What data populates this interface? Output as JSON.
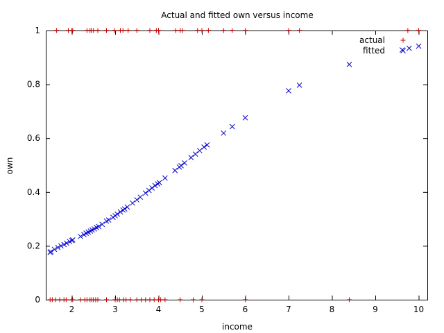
{
  "chart_data": {
    "type": "scatter",
    "title": "Actual and fitted own versus income",
    "xlabel": "income",
    "ylabel": "own",
    "xlim": [
      1.4,
      10.2
    ],
    "ylim": [
      0,
      1
    ],
    "xticks": [
      2,
      3,
      4,
      5,
      6,
      7,
      8,
      9,
      10
    ],
    "yticks": [
      0,
      0.2,
      0.4,
      0.6,
      0.8,
      1
    ],
    "grid": false,
    "legend_position": "top-right",
    "series": [
      {
        "name": "actual",
        "marker": "plus",
        "color": "#cc0000",
        "points": [
          [
            1.5,
            0
          ],
          [
            1.55,
            0
          ],
          [
            1.63,
            0
          ],
          [
            1.72,
            0
          ],
          [
            1.82,
            0
          ],
          [
            1.87,
            0
          ],
          [
            2.0,
            0
          ],
          [
            2.02,
            0
          ],
          [
            2.2,
            0
          ],
          [
            2.3,
            0
          ],
          [
            2.35,
            0
          ],
          [
            2.42,
            0
          ],
          [
            2.46,
            0
          ],
          [
            2.5,
            0
          ],
          [
            2.55,
            0
          ],
          [
            2.6,
            0
          ],
          [
            2.8,
            0
          ],
          [
            3.0,
            0
          ],
          [
            3.05,
            0
          ],
          [
            3.1,
            0
          ],
          [
            3.2,
            0
          ],
          [
            3.25,
            0
          ],
          [
            3.35,
            0
          ],
          [
            3.5,
            0
          ],
          [
            3.6,
            0
          ],
          [
            3.7,
            0
          ],
          [
            3.8,
            0
          ],
          [
            3.9,
            0
          ],
          [
            4.0,
            0
          ],
          [
            4.05,
            0
          ],
          [
            4.15,
            0
          ],
          [
            4.5,
            0
          ],
          [
            4.8,
            0
          ],
          [
            5.0,
            0
          ],
          [
            6.0,
            0
          ],
          [
            8.4,
            0
          ],
          [
            1.65,
            1
          ],
          [
            1.92,
            1
          ],
          [
            2.0,
            1
          ],
          [
            2.02,
            1
          ],
          [
            2.35,
            1
          ],
          [
            2.42,
            1
          ],
          [
            2.45,
            1
          ],
          [
            2.5,
            1
          ],
          [
            2.6,
            1
          ],
          [
            2.8,
            1
          ],
          [
            2.98,
            1
          ],
          [
            3.12,
            1
          ],
          [
            3.18,
            1
          ],
          [
            3.3,
            1
          ],
          [
            3.5,
            1
          ],
          [
            3.8,
            1
          ],
          [
            3.95,
            1
          ],
          [
            4.0,
            1
          ],
          [
            4.4,
            1
          ],
          [
            4.5,
            1
          ],
          [
            4.55,
            1
          ],
          [
            4.9,
            1
          ],
          [
            5.0,
            1
          ],
          [
            5.15,
            1
          ],
          [
            5.5,
            1
          ],
          [
            5.7,
            1
          ],
          [
            6.0,
            1
          ],
          [
            7.0,
            1
          ],
          [
            7.25,
            1
          ],
          [
            9.75,
            1
          ],
          [
            10.0,
            1
          ]
        ]
      },
      {
        "name": "fitted",
        "marker": "cross",
        "color": "#0000cc",
        "points": [
          [
            1.5,
            0.176
          ],
          [
            1.52,
            0.178
          ],
          [
            1.6,
            0.187
          ],
          [
            1.68,
            0.194
          ],
          [
            1.75,
            0.2
          ],
          [
            1.82,
            0.205
          ],
          [
            1.88,
            0.21
          ],
          [
            1.95,
            0.216
          ],
          [
            2.0,
            0.22
          ],
          [
            2.02,
            0.222
          ],
          [
            2.2,
            0.235
          ],
          [
            2.28,
            0.242
          ],
          [
            2.33,
            0.247
          ],
          [
            2.38,
            0.251
          ],
          [
            2.43,
            0.255
          ],
          [
            2.47,
            0.259
          ],
          [
            2.52,
            0.263
          ],
          [
            2.57,
            0.268
          ],
          [
            2.62,
            0.272
          ],
          [
            2.7,
            0.28
          ],
          [
            2.8,
            0.292
          ],
          [
            2.85,
            0.296
          ],
          [
            2.95,
            0.306
          ],
          [
            3.0,
            0.312
          ],
          [
            3.05,
            0.318
          ],
          [
            3.12,
            0.326
          ],
          [
            3.18,
            0.333
          ],
          [
            3.22,
            0.337
          ],
          [
            3.28,
            0.344
          ],
          [
            3.4,
            0.359
          ],
          [
            3.5,
            0.371
          ],
          [
            3.58,
            0.381
          ],
          [
            3.7,
            0.396
          ],
          [
            3.78,
            0.406
          ],
          [
            3.85,
            0.415
          ],
          [
            3.92,
            0.424
          ],
          [
            3.98,
            0.43
          ],
          [
            4.02,
            0.435
          ],
          [
            4.15,
            0.452
          ],
          [
            4.38,
            0.48
          ],
          [
            4.48,
            0.493
          ],
          [
            4.52,
            0.498
          ],
          [
            4.6,
            0.508
          ],
          [
            4.75,
            0.528
          ],
          [
            4.85,
            0.541
          ],
          [
            4.95,
            0.554
          ],
          [
            5.05,
            0.567
          ],
          [
            5.12,
            0.575
          ],
          [
            5.5,
            0.619
          ],
          [
            5.7,
            0.643
          ],
          [
            6.0,
            0.676
          ],
          [
            7.0,
            0.776
          ],
          [
            7.25,
            0.797
          ],
          [
            8.4,
            0.874
          ],
          [
            9.62,
            0.928
          ],
          [
            9.78,
            0.934
          ],
          [
            10.0,
            0.942
          ]
        ]
      }
    ]
  }
}
